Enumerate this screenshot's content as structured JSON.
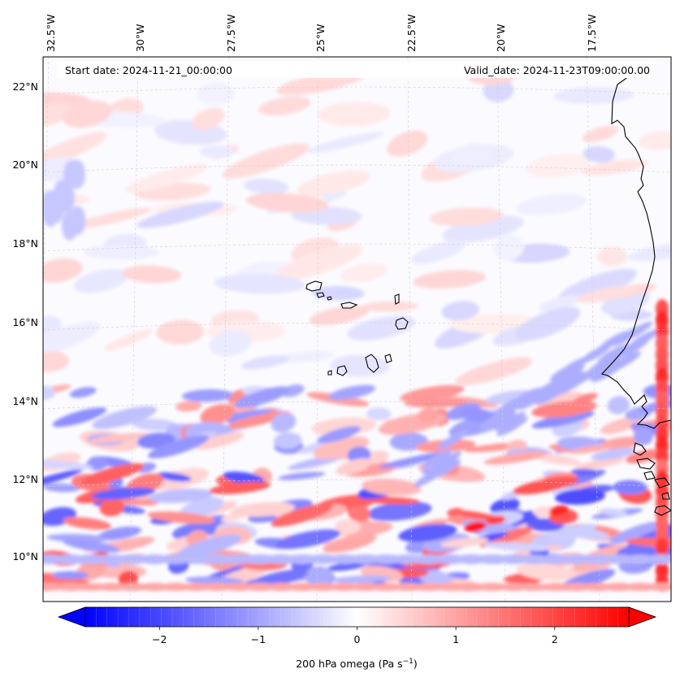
{
  "header": {
    "start_date": "Start date: 2024-11-21_00:00:00",
    "valid_date": "Valid_date: 2024-11-23T09:00:00.00"
  },
  "map": {
    "projection": "lambert-conformal",
    "gridlines": "dashed-light-gray",
    "lon_labels": [
      "32.5°W",
      "30°W",
      "27.5°W",
      "25°W",
      "22.5°W",
      "20°W",
      "17.5°W"
    ],
    "lat_labels": [
      "22°N",
      "20°N",
      "18°N",
      "16°N",
      "14°N",
      "12°N",
      "10°N"
    ],
    "field": "200 hPa vertical velocity, red positive / blue negative",
    "colors": {
      "negative": "#0000ff",
      "zero": "#ffffff",
      "positive": "#ff0000",
      "coastline": "#000000"
    }
  },
  "colorbar": {
    "ticks": [
      "−2",
      "−1",
      "0",
      "1",
      "2"
    ],
    "tick_values": [
      -2,
      -1,
      0,
      1,
      2
    ],
    "range": [
      -2.75,
      2.75
    ],
    "extend": "both",
    "cmap": "bwr",
    "label_main": "200 hPa omega (Pa s",
    "label_sup": "−1",
    "label_end": ")"
  }
}
